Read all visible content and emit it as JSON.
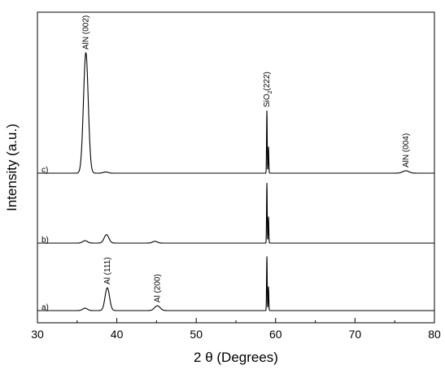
{
  "chart_data": {
    "type": "line",
    "title": "",
    "xlabel": "2 θ (Degrees)",
    "ylabel": "Intensity (a.u.)",
    "xlim": [
      30,
      80
    ],
    "x_ticks": [
      "30",
      "40",
      "50",
      "60",
      "70",
      "80"
    ],
    "y_ticks_shown": false,
    "grid": false,
    "legend": "none",
    "series": [
      {
        "name": "a)",
        "baseline": 0,
        "peaks": [
          {
            "x": 36.0,
            "height": 0.02,
            "width": 0.3
          },
          {
            "x": 38.8,
            "height": 0.19,
            "width": 0.28
          },
          {
            "x": 45.1,
            "height": 0.04,
            "width": 0.35
          },
          {
            "x": 58.9,
            "height": 0.45,
            "width": 0.04
          },
          {
            "x": 59.1,
            "height": 0.2,
            "width": 0.04
          }
        ]
      },
      {
        "name": "b)",
        "baseline": 1,
        "peaks": [
          {
            "x": 36.0,
            "height": 0.02,
            "width": 0.3
          },
          {
            "x": 38.7,
            "height": 0.07,
            "width": 0.3
          },
          {
            "x": 44.8,
            "height": 0.015,
            "width": 0.3
          },
          {
            "x": 58.9,
            "height": 0.5,
            "width": 0.04
          },
          {
            "x": 59.1,
            "height": 0.22,
            "width": 0.04
          }
        ]
      },
      {
        "name": "c)",
        "baseline": 2,
        "peaks": [
          {
            "x": 36.1,
            "height": 1.0,
            "width": 0.3
          },
          {
            "x": 38.6,
            "height": 0.01,
            "width": 0.3
          },
          {
            "x": 58.9,
            "height": 0.52,
            "width": 0.04
          },
          {
            "x": 59.1,
            "height": 0.22,
            "width": 0.04
          },
          {
            "x": 76.4,
            "height": 0.02,
            "width": 0.4
          }
        ]
      }
    ],
    "annotations": [
      {
        "text": "AlN (002)",
        "x": 36.1,
        "series": "c)"
      },
      {
        "text": "AlN (004)",
        "x": 76.4,
        "series": "c)"
      },
      {
        "text": "Al (111)",
        "x": 38.8,
        "series": "a)"
      },
      {
        "text": "Al (200)",
        "x": 45.1,
        "series": "a)"
      }
    ],
    "annotation_sio2": {
      "base": "S",
      "main": "iO",
      "sub": "2",
      "suffix": "(222)",
      "x": 58.9,
      "series": "c)"
    }
  }
}
